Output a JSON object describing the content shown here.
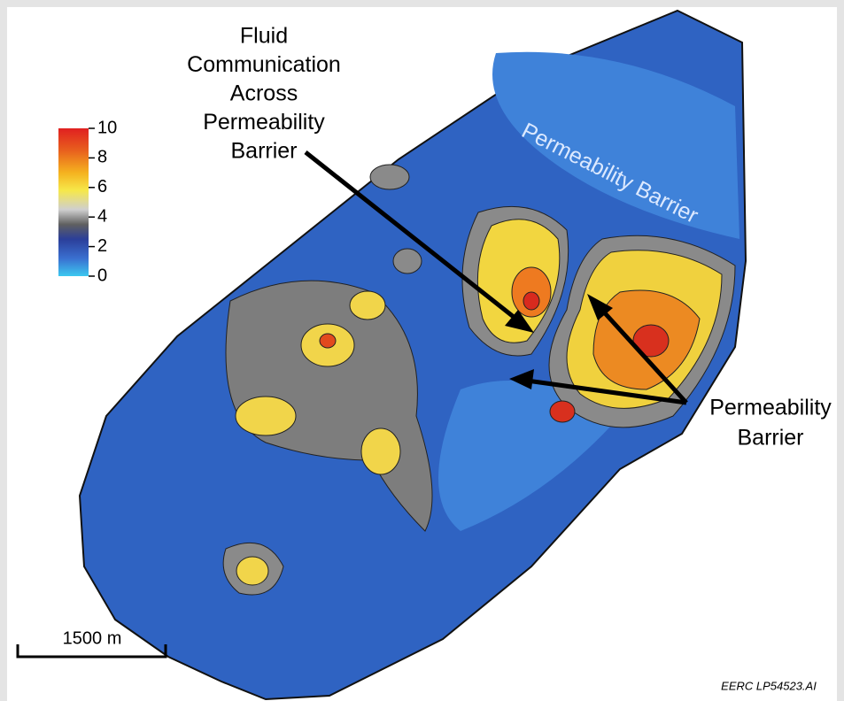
{
  "colorbar": {
    "range": [
      0,
      10
    ],
    "ticks": [
      0,
      2,
      4,
      6,
      8,
      10
    ]
  },
  "annotations": {
    "fluid_communication": [
      "Fluid",
      "Communication",
      "Across",
      "Permeability",
      "Barrier"
    ],
    "top_barrier": "Permeability Barrier",
    "right_barrier": [
      "Permeability",
      "Barrier"
    ]
  },
  "scale_bar": "1500 m",
  "credit": "EERC LP54523.AI"
}
